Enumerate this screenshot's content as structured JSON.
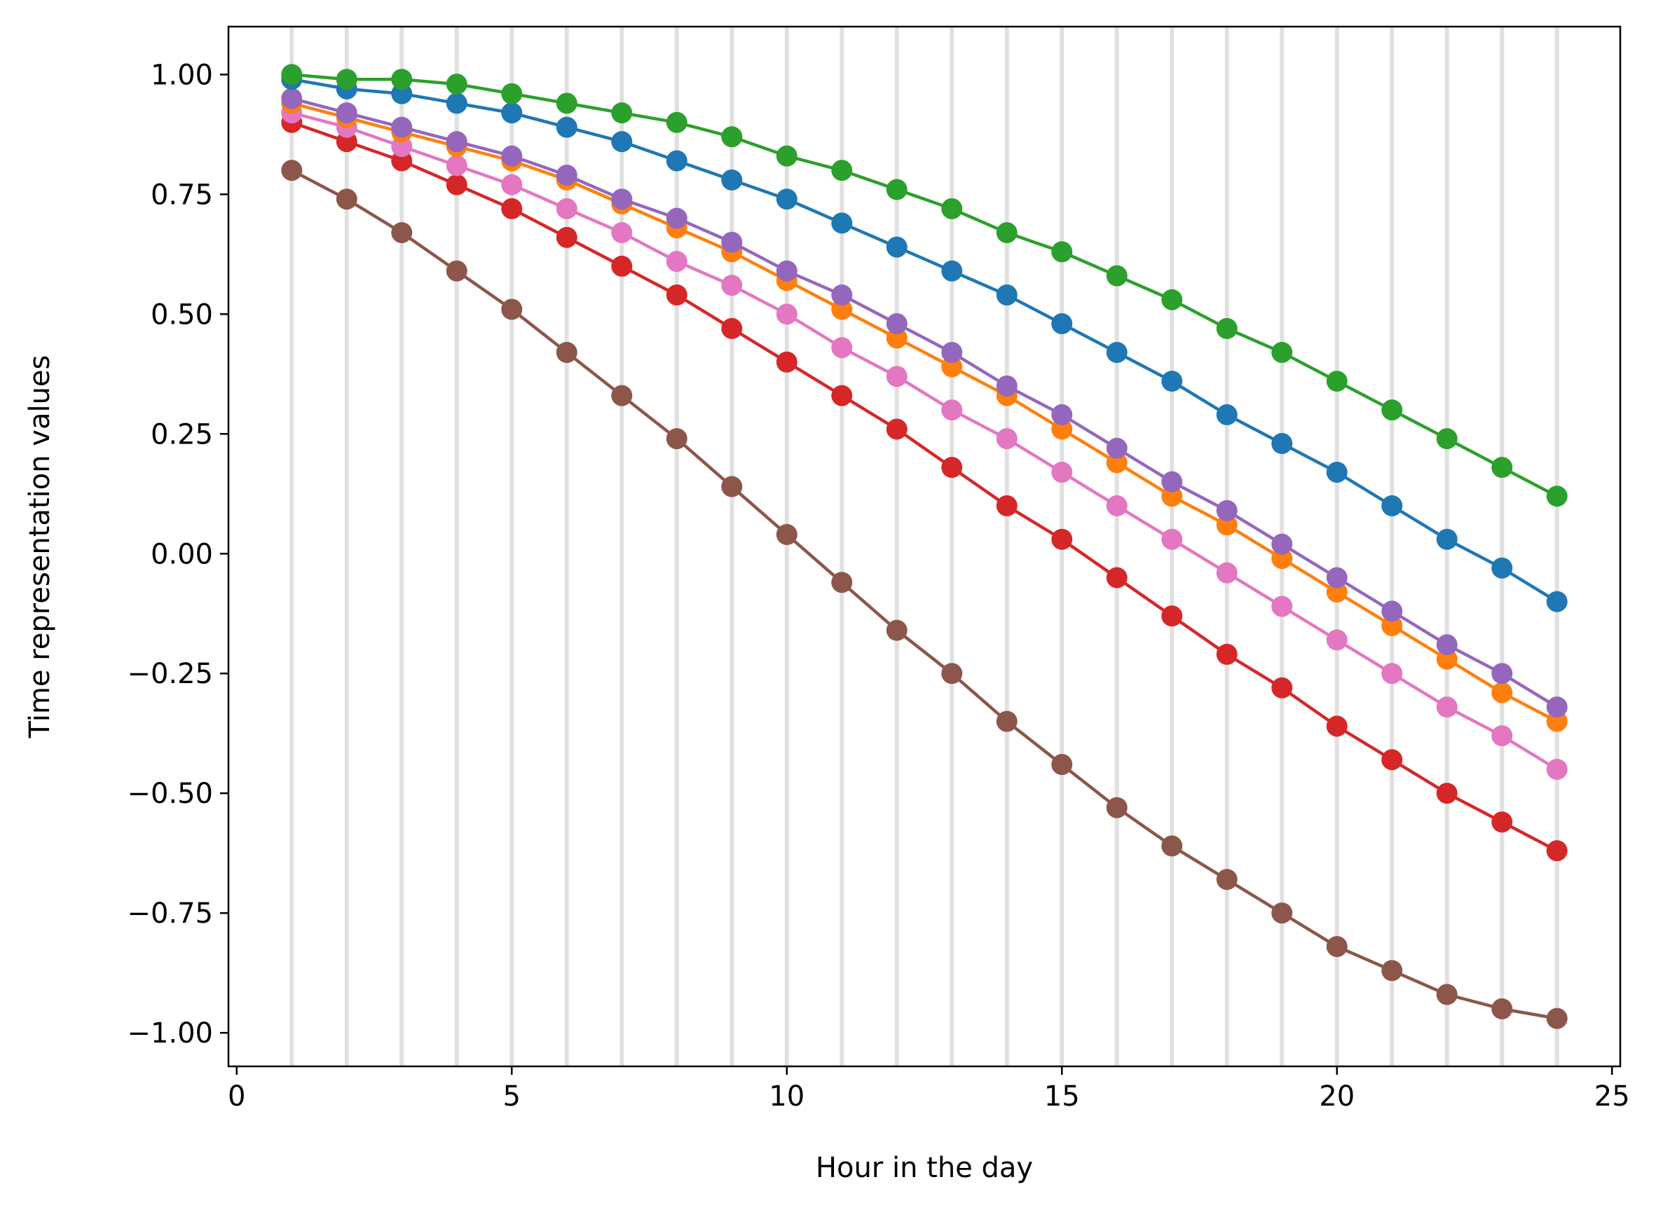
{
  "chart_data": {
    "type": "line",
    "title": "",
    "xlabel": "Hour in the day",
    "ylabel": "Time representation values",
    "xlim": [
      -0.15,
      25.15
    ],
    "ylim": [
      -1.07,
      1.1
    ],
    "xticks": [
      0,
      5,
      10,
      15,
      20,
      25
    ],
    "xtick_labels": [
      "0",
      "5",
      "10",
      "15",
      "20",
      "25"
    ],
    "yticks": [
      1.0,
      0.75,
      0.5,
      0.25,
      0.0,
      -0.25,
      -0.5,
      -0.75,
      -1.0
    ],
    "ytick_labels": [
      "1.00",
      "0.75",
      "0.50",
      "0.25",
      "0.00",
      "−0.25",
      "−0.50",
      "−0.75",
      "−1.00"
    ],
    "vertical_gridlines_at": [
      1,
      2,
      3,
      4,
      5,
      6,
      7,
      8,
      9,
      10,
      11,
      12,
      13,
      14,
      15,
      16,
      17,
      18,
      19,
      20,
      21,
      22,
      23,
      24
    ],
    "grid": "vertical lines at each hour",
    "legend": "none",
    "x": [
      1,
      2,
      3,
      4,
      5,
      6,
      7,
      8,
      9,
      10,
      11,
      12,
      13,
      14,
      15,
      16,
      17,
      18,
      19,
      20,
      21,
      22,
      23,
      24
    ],
    "series": [
      {
        "color": "#1f77b4",
        "values": [
          0.99,
          0.97,
          0.96,
          0.94,
          0.92,
          0.89,
          0.86,
          0.82,
          0.78,
          0.74,
          0.69,
          0.64,
          0.59,
          0.54,
          0.48,
          0.42,
          0.36,
          0.29,
          0.23,
          0.17,
          0.1,
          0.03,
          -0.03,
          -0.1
        ]
      },
      {
        "color": "#ff7f0e",
        "values": [
          0.94,
          0.91,
          0.88,
          0.85,
          0.82,
          0.78,
          0.73,
          0.68,
          0.63,
          0.57,
          0.51,
          0.45,
          0.39,
          0.33,
          0.26,
          0.19,
          0.12,
          0.06,
          -0.01,
          -0.08,
          -0.15,
          -0.22,
          -0.29,
          -0.35
        ]
      },
      {
        "color": "#2ca02c",
        "values": [
          1.0,
          0.99,
          0.99,
          0.98,
          0.96,
          0.94,
          0.92,
          0.9,
          0.87,
          0.83,
          0.8,
          0.76,
          0.72,
          0.67,
          0.63,
          0.58,
          0.53,
          0.47,
          0.42,
          0.36,
          0.3,
          0.24,
          0.18,
          0.12
        ]
      },
      {
        "color": "#d62728",
        "values": [
          0.9,
          0.86,
          0.82,
          0.77,
          0.72,
          0.66,
          0.6,
          0.54,
          0.47,
          0.4,
          0.33,
          0.26,
          0.18,
          0.1,
          0.03,
          -0.05,
          -0.13,
          -0.21,
          -0.28,
          -0.36,
          -0.43,
          -0.5,
          -0.56,
          -0.62
        ]
      },
      {
        "color": "#9467bd",
        "values": [
          0.95,
          0.92,
          0.89,
          0.86,
          0.83,
          0.79,
          0.74,
          0.7,
          0.65,
          0.59,
          0.54,
          0.48,
          0.42,
          0.35,
          0.29,
          0.22,
          0.15,
          0.09,
          0.02,
          -0.05,
          -0.12,
          -0.19,
          -0.25,
          -0.32
        ]
      },
      {
        "color": "#8c564b",
        "values": [
          0.8,
          0.74,
          0.67,
          0.59,
          0.51,
          0.42,
          0.33,
          0.24,
          0.14,
          0.04,
          -0.06,
          -0.16,
          -0.25,
          -0.35,
          -0.44,
          -0.53,
          -0.61,
          -0.68,
          -0.75,
          -0.82,
          -0.87,
          -0.92,
          -0.95,
          -0.97
        ]
      },
      {
        "color": "#e377c2",
        "values": [
          0.92,
          0.89,
          0.85,
          0.81,
          0.77,
          0.72,
          0.67,
          0.61,
          0.56,
          0.5,
          0.43,
          0.37,
          0.3,
          0.24,
          0.17,
          0.1,
          0.03,
          -0.04,
          -0.11,
          -0.18,
          -0.25,
          -0.32,
          -0.38,
          -0.45
        ]
      }
    ],
    "draw_order": [
      5,
      3,
      6,
      1,
      4,
      0,
      2
    ]
  }
}
